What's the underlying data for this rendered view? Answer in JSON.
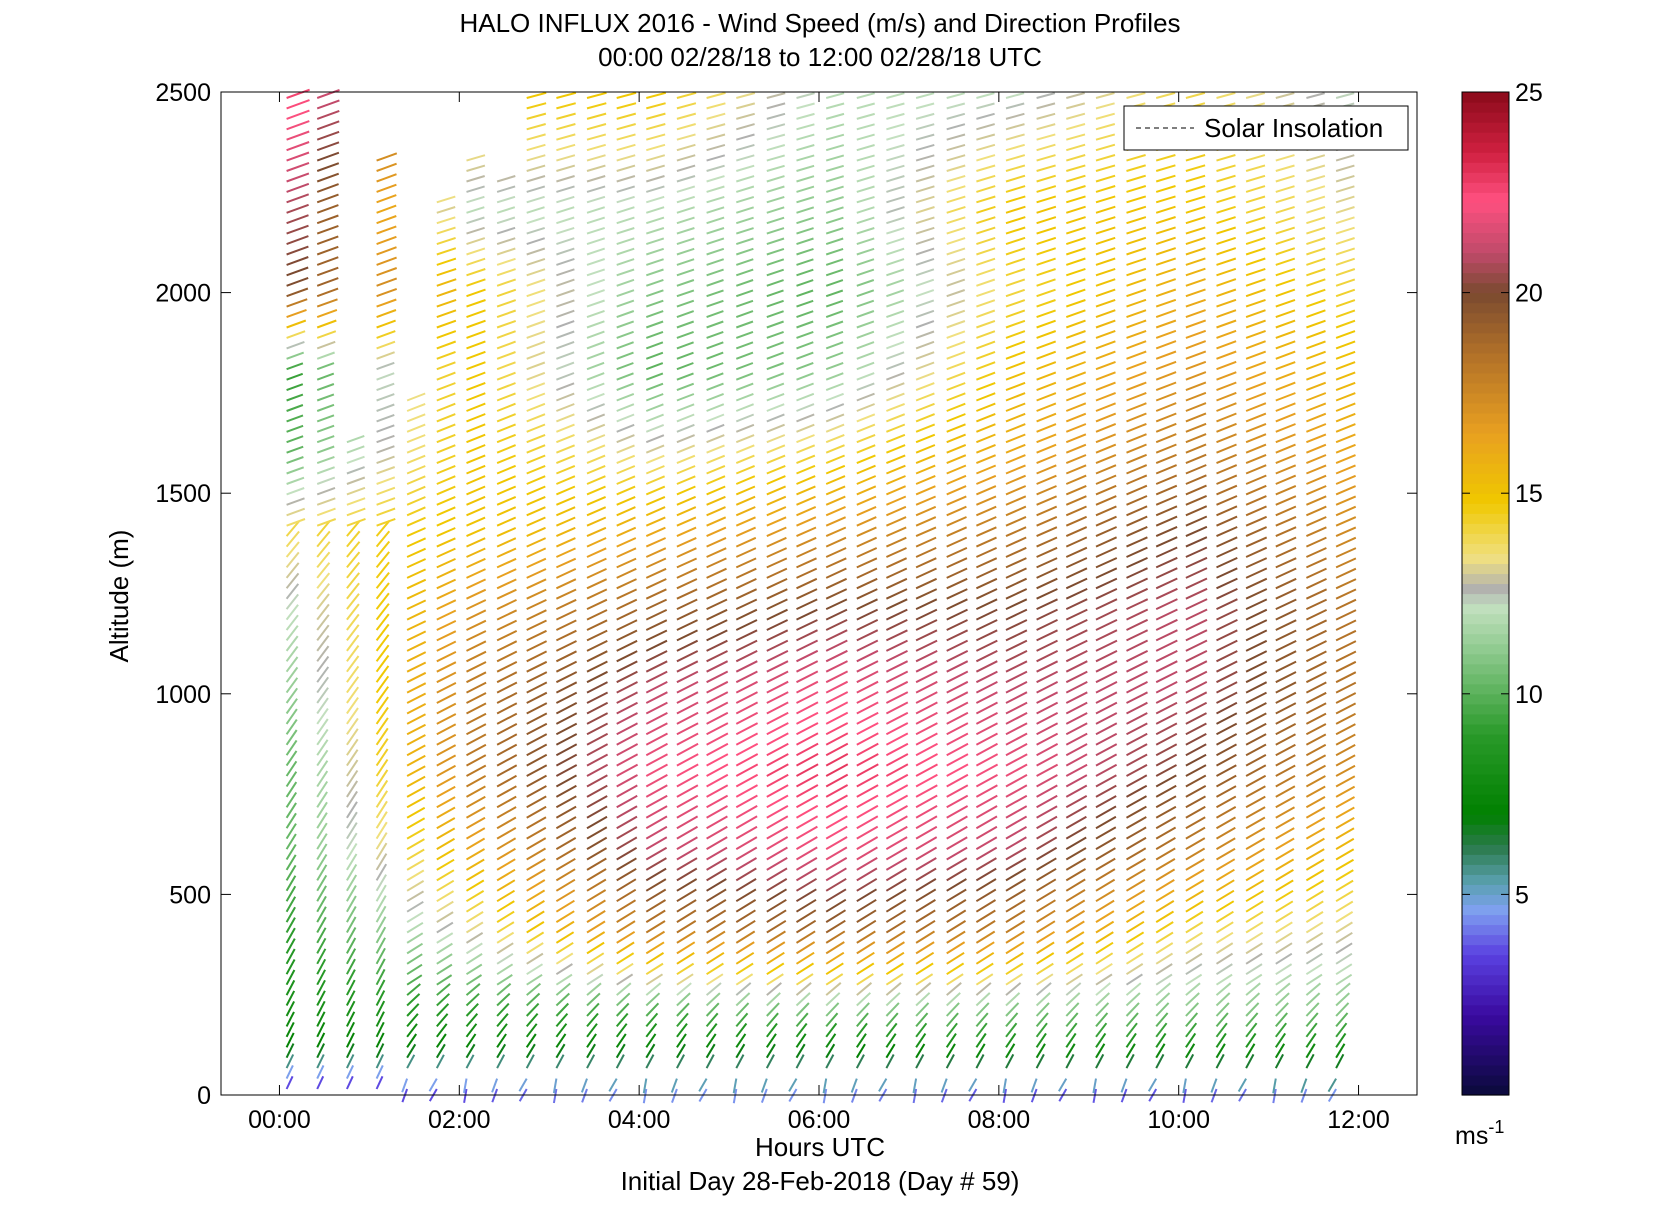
{
  "chart_data": {
    "type": "wind-barb-profile",
    "title_line1": "HALO INFLUX 2016 - Wind Speed (m/s) and Direction Profiles",
    "title_line2": "00:00 02/28/18 to 12:00 02/28/18  UTC",
    "xlabel": "Hours UTC",
    "xlabel_sub": "Initial Day 28-Feb-2018 (Day # 59)",
    "ylabel": "Altitude (m)",
    "x_tick_labels": [
      "00:00",
      "02:00",
      "04:00",
      "06:00",
      "08:00",
      "10:00",
      "12:00"
    ],
    "x_tick_hours": [
      0,
      2,
      4,
      6,
      8,
      10,
      12
    ],
    "xlim_hours": [
      -0.65,
      12.65
    ],
    "y_ticks": [
      0,
      500,
      1000,
      1500,
      2000,
      2500
    ],
    "ylim": [
      0,
      2500
    ],
    "legend_label": "Solar Insolation",
    "legend_position": "top-right",
    "colorbar": {
      "min": 0,
      "max": 25,
      "ticks": [
        5,
        10,
        15,
        20,
        25
      ],
      "unit_label": "ms",
      "unit_exponent": "-1"
    },
    "colormap_stops": [
      {
        "v": 0,
        "c": "#0a0a3a"
      },
      {
        "v": 2,
        "c": "#3a0aa0"
      },
      {
        "v": 3.5,
        "c": "#5a40e0"
      },
      {
        "v": 4.6,
        "c": "#7fa0f0"
      },
      {
        "v": 5.3,
        "c": "#5aa0b0"
      },
      {
        "v": 6.2,
        "c": "#2a7a4a"
      },
      {
        "v": 7.0,
        "c": "#008000"
      },
      {
        "v": 9.0,
        "c": "#2a9a2a"
      },
      {
        "v": 11.0,
        "c": "#8ac88a"
      },
      {
        "v": 12.2,
        "c": "#c4e0c0"
      },
      {
        "v": 12.6,
        "c": "#b0b0b0"
      },
      {
        "v": 13.4,
        "c": "#f0e080"
      },
      {
        "v": 14.8,
        "c": "#f0c800"
      },
      {
        "v": 16.5,
        "c": "#e8a020"
      },
      {
        "v": 18.5,
        "c": "#b07028"
      },
      {
        "v": 20.0,
        "c": "#7a4a30"
      },
      {
        "v": 21.0,
        "c": "#c04a6a"
      },
      {
        "v": 22.3,
        "c": "#ff5080"
      },
      {
        "v": 23.5,
        "c": "#d02040"
      },
      {
        "v": 25.0,
        "c": "#8a0a1a"
      }
    ],
    "profile_hours": [
      0.08,
      0.42,
      0.75,
      1.08,
      1.42,
      1.75,
      2.08,
      2.42,
      2.75,
      3.08,
      3.42,
      3.75,
      4.08,
      4.42,
      4.75,
      5.08,
      5.42,
      5.75,
      6.08,
      6.42,
      6.75,
      7.08,
      7.42,
      7.75,
      8.08,
      8.42,
      8.75,
      9.08,
      9.42,
      9.75,
      10.08,
      10.42,
      10.75,
      11.08,
      11.42,
      11.75
    ],
    "max_height_m": [
      2500,
      2500,
      1650,
      2350,
      1750,
      2250,
      2350,
      2300,
      2500,
      2500,
      2500,
      2500,
      2500,
      2500,
      2500,
      2500,
      2500,
      2500,
      2500,
      2500,
      2500,
      2500,
      2500,
      2500,
      2500,
      2500,
      2500,
      2500,
      2500,
      2500,
      2500,
      2500,
      2500,
      2500,
      2500,
      2500
    ],
    "speed_at_altitude_ms": {
      "altitudes_m": [
        0,
        100,
        200,
        400,
        600,
        800,
        1000,
        1200,
        1400,
        1600,
        1800,
        2000,
        2200,
        2500
      ],
      "hour_0": [
        3,
        7,
        8,
        9,
        10,
        10,
        11,
        12,
        14,
        10,
        9,
        20,
        21,
        23
      ],
      "hour_2": [
        3,
        7,
        9,
        13,
        16,
        18,
        18,
        17,
        15,
        15,
        15,
        15,
        12,
        15
      ],
      "hour_4": [
        4,
        7,
        10,
        18,
        21,
        22,
        21,
        19,
        16,
        13,
        10,
        11,
        12,
        15
      ],
      "hour_6": [
        4,
        7,
        11,
        19,
        22,
        23,
        22,
        20,
        17,
        14,
        11,
        10,
        11,
        12
      ],
      "hour_8": [
        3,
        8,
        11,
        18,
        21,
        22,
        21,
        20,
        18,
        16,
        15,
        14,
        15,
        12
      ],
      "hour_10": [
        3,
        8,
        11,
        14,
        18,
        20,
        21,
        21,
        20,
        18,
        17,
        16,
        15,
        14
      ],
      "hour_12": [
        4,
        8,
        11,
        13,
        15,
        17,
        18,
        18,
        17,
        16,
        15,
        14,
        13,
        12
      ]
    }
  }
}
